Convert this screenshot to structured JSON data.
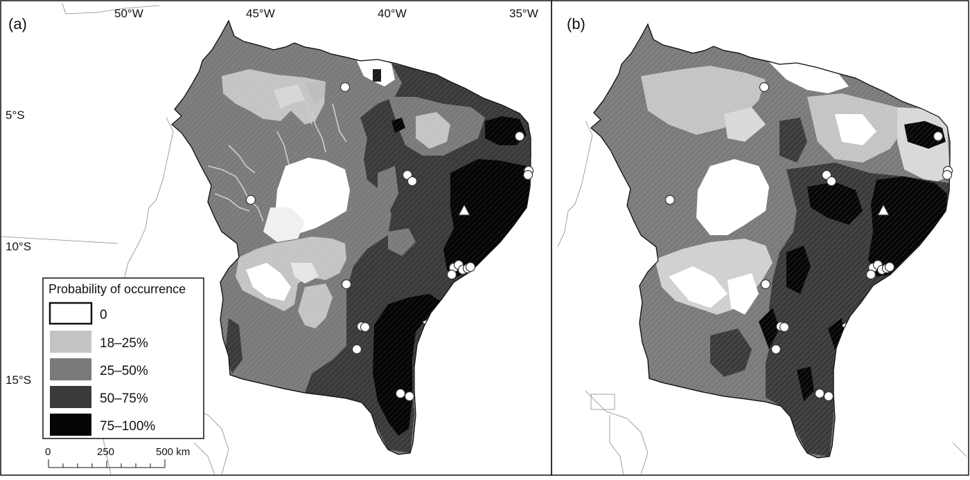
{
  "figure": {
    "panels": [
      {
        "label": "(a)"
      },
      {
        "label": "(b)"
      }
    ],
    "longitudes": [
      "50°W",
      "45°W",
      "40°W",
      "35°W"
    ],
    "latitudes": [
      "5°S",
      "10°S",
      "15°S"
    ]
  },
  "legend": {
    "title": "Probability of occurrence",
    "classes": [
      {
        "label": "0",
        "color": "#ffffff"
      },
      {
        "label": "18–25%",
        "color": "#c4c4c4"
      },
      {
        "label": "25–50%",
        "color": "#7a7a7a"
      },
      {
        "label": "50–75%",
        "color": "#3a3a3a"
      },
      {
        "label": "75–100%",
        "color": "#050505"
      }
    ]
  },
  "scale_bar": {
    "ticks": [
      "0",
      "250",
      "500 km"
    ]
  },
  "markers": {
    "occurrence_symbol": "circle",
    "reference_symbol": "triangle"
  }
}
